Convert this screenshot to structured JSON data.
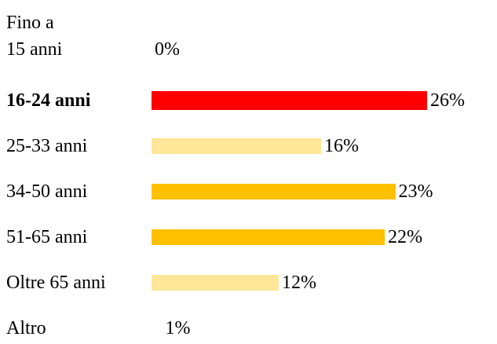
{
  "chart_data": {
    "type": "bar",
    "categories": [
      "Fino a\n15 anni",
      "16-24 anni",
      "25-33 anni",
      "34-50 anni",
      "51-65 anni",
      "Oltre 65 anni",
      "Altro"
    ],
    "values": [
      0,
      26,
      16,
      23,
      22,
      12,
      1
    ],
    "value_labels": [
      "0%",
      "26%",
      "16%",
      "23%",
      "22%",
      "12%",
      "1%"
    ],
    "colors": [
      "none",
      "#ff0000",
      "#ffe699",
      "#ffc000",
      "#ffc000",
      "#ffe699",
      "none"
    ],
    "bold": [
      false,
      true,
      false,
      false,
      false,
      false,
      false
    ]
  }
}
